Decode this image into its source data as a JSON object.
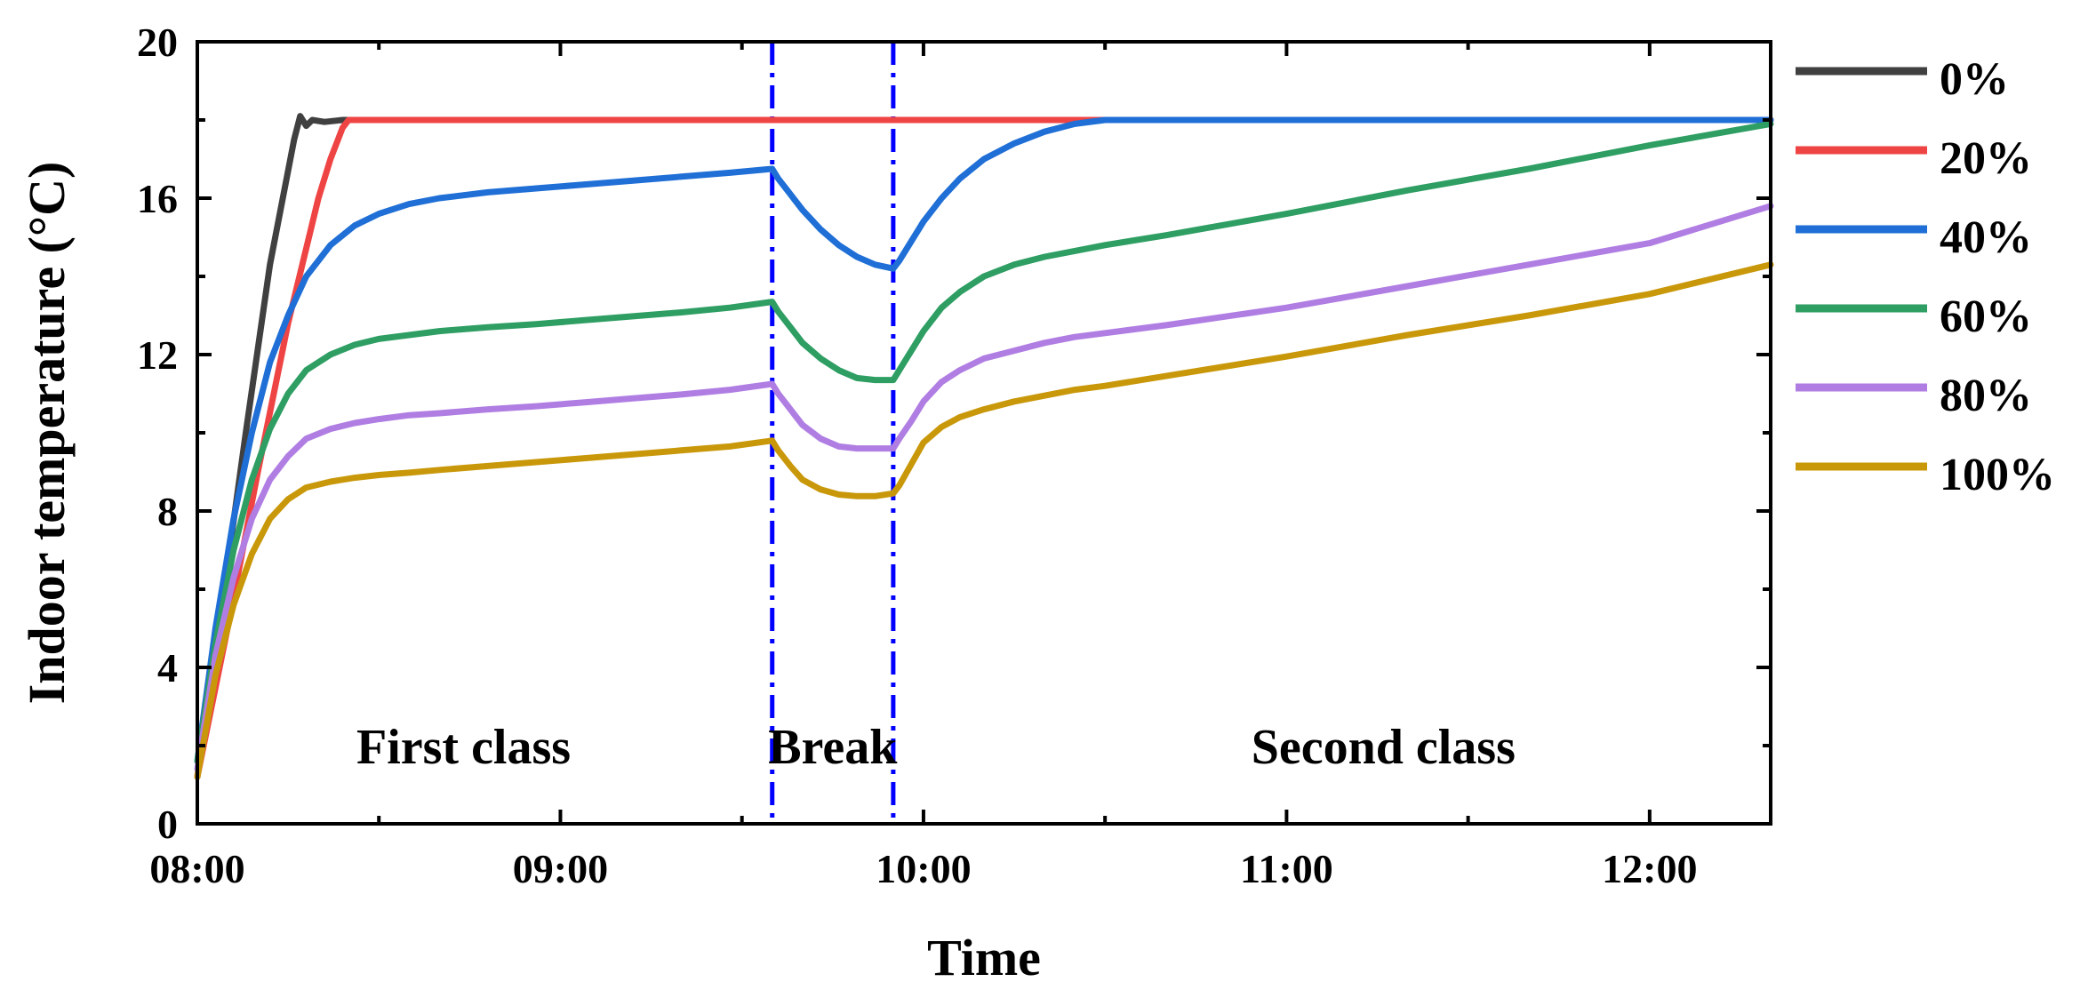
{
  "chart_data": {
    "type": "line",
    "title": "",
    "xlabel": "Time",
    "ylabel": "Indoor temperature (°C)",
    "xlim": [
      0,
      260
    ],
    "ylim": [
      0,
      20
    ],
    "x_unit": "minutes after 08:00",
    "x_ticks": [
      {
        "value": 0,
        "label": "08:00"
      },
      {
        "value": 60,
        "label": "09:00"
      },
      {
        "value": 120,
        "label": "10:00"
      },
      {
        "value": 180,
        "label": "11:00"
      },
      {
        "value": 240,
        "label": "12:00"
      }
    ],
    "y_ticks": [
      {
        "value": 0,
        "label": "0"
      },
      {
        "value": 4,
        "label": "4"
      },
      {
        "value": 8,
        "label": "8"
      },
      {
        "value": 12,
        "label": "12"
      },
      {
        "value": 16,
        "label": "16"
      },
      {
        "value": 20,
        "label": "20"
      }
    ],
    "vlines": [
      {
        "x": 95,
        "color": "#0000ff",
        "style": "dash-dot"
      },
      {
        "x": 115,
        "color": "#0000ff",
        "style": "dash-dot"
      }
    ],
    "annotations": [
      {
        "text": "First class",
        "x": 44,
        "y": 2
      },
      {
        "text": "Break",
        "x": 105,
        "y": 2
      },
      {
        "text": "Second class",
        "x": 196,
        "y": 2
      }
    ],
    "legend_position": "right",
    "series": [
      {
        "name": "0%",
        "color": "#404040",
        "x": [
          0,
          4,
          8,
          12,
          16,
          17,
          18,
          19,
          21,
          24,
          260
        ],
        "y": [
          1.2,
          5.5,
          10.0,
          14.3,
          17.5,
          18.1,
          17.85,
          18.0,
          17.95,
          18.0,
          18.0
        ]
      },
      {
        "name": "20%",
        "color": "#ef4444",
        "x": [
          0,
          5,
          10,
          15,
          20,
          22,
          24,
          25,
          260
        ],
        "y": [
          1.2,
          5.0,
          9.0,
          12.8,
          16.0,
          17.0,
          17.8,
          18.0,
          18.0
        ]
      },
      {
        "name": "40%",
        "color": "#1f6fd6",
        "x": [
          0,
          3,
          6,
          9,
          12,
          15,
          18,
          22,
          26,
          30,
          35,
          40,
          48,
          56,
          64,
          72,
          80,
          88,
          95,
          96,
          98,
          100,
          103,
          106,
          109,
          112,
          115,
          116,
          118,
          120,
          123,
          126,
          130,
          135,
          140,
          145,
          150,
          260
        ],
        "y": [
          1.6,
          5.0,
          7.8,
          10.0,
          11.8,
          13.0,
          14.0,
          14.8,
          15.3,
          15.6,
          15.85,
          16.0,
          16.15,
          16.25,
          16.35,
          16.45,
          16.55,
          16.65,
          16.75,
          16.5,
          16.1,
          15.7,
          15.2,
          14.8,
          14.5,
          14.3,
          14.2,
          14.4,
          14.9,
          15.4,
          16.0,
          16.5,
          17.0,
          17.4,
          17.7,
          17.9,
          18.0,
          18.0
        ]
      },
      {
        "name": "60%",
        "color": "#2e9e63",
        "x": [
          0,
          3,
          6,
          9,
          12,
          15,
          18,
          22,
          26,
          30,
          35,
          40,
          48,
          56,
          64,
          72,
          80,
          88,
          95,
          96,
          98,
          100,
          103,
          106,
          109,
          112,
          115,
          116,
          118,
          120,
          123,
          126,
          130,
          135,
          140,
          145,
          150,
          160,
          180,
          200,
          220,
          240,
          260
        ],
        "y": [
          1.6,
          4.6,
          7.0,
          8.8,
          10.1,
          11.0,
          11.6,
          12.0,
          12.25,
          12.4,
          12.5,
          12.6,
          12.7,
          12.78,
          12.88,
          12.98,
          13.08,
          13.2,
          13.35,
          13.1,
          12.7,
          12.3,
          11.9,
          11.6,
          11.4,
          11.35,
          11.35,
          11.6,
          12.1,
          12.6,
          13.2,
          13.6,
          14.0,
          14.3,
          14.5,
          14.65,
          14.8,
          15.05,
          15.6,
          16.2,
          16.75,
          17.35,
          17.9
        ]
      },
      {
        "name": "80%",
        "color": "#b07ee3",
        "x": [
          0,
          3,
          6,
          9,
          12,
          15,
          18,
          22,
          26,
          30,
          35,
          40,
          48,
          56,
          64,
          72,
          80,
          88,
          95,
          96,
          98,
          100,
          103,
          106,
          109,
          112,
          115,
          116,
          118,
          120,
          123,
          126,
          130,
          135,
          140,
          145,
          150,
          160,
          180,
          200,
          220,
          240,
          260
        ],
        "y": [
          1.4,
          4.3,
          6.3,
          7.8,
          8.8,
          9.4,
          9.85,
          10.1,
          10.25,
          10.35,
          10.45,
          10.5,
          10.6,
          10.68,
          10.78,
          10.88,
          10.98,
          11.1,
          11.25,
          11.0,
          10.6,
          10.2,
          9.85,
          9.65,
          9.6,
          9.6,
          9.6,
          9.85,
          10.3,
          10.8,
          11.3,
          11.6,
          11.9,
          12.1,
          12.3,
          12.45,
          12.55,
          12.75,
          13.2,
          13.75,
          14.3,
          14.85,
          15.8
        ]
      },
      {
        "name": "100%",
        "color": "#c9980a",
        "x": [
          0,
          3,
          6,
          9,
          12,
          15,
          18,
          22,
          26,
          30,
          35,
          40,
          48,
          56,
          64,
          72,
          80,
          88,
          95,
          96,
          98,
          100,
          103,
          106,
          109,
          112,
          115,
          116,
          118,
          120,
          123,
          126,
          130,
          135,
          140,
          145,
          150,
          160,
          180,
          200,
          220,
          240,
          260
        ],
        "y": [
          1.2,
          3.8,
          5.6,
          6.9,
          7.8,
          8.3,
          8.6,
          8.75,
          8.85,
          8.92,
          8.98,
          9.05,
          9.15,
          9.25,
          9.35,
          9.45,
          9.55,
          9.65,
          9.8,
          9.55,
          9.15,
          8.8,
          8.55,
          8.42,
          8.38,
          8.38,
          8.45,
          8.65,
          9.2,
          9.75,
          10.15,
          10.4,
          10.6,
          10.8,
          10.95,
          11.1,
          11.2,
          11.45,
          11.95,
          12.5,
          13.0,
          13.55,
          14.3
        ]
      }
    ]
  }
}
